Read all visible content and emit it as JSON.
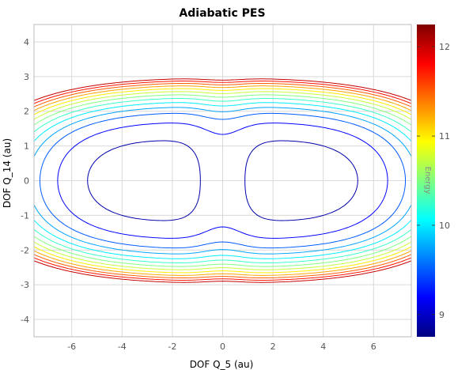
{
  "chart_data": {
    "type": "contour",
    "title": "Adiabatic PES",
    "xlabel": "DOF Q_5 (au)",
    "ylabel": "DOF Q_14 (au)",
    "xlim": [
      -7.5,
      7.5
    ],
    "ylim": [
      -4.5,
      4.5
    ],
    "x_ticks": [
      -6,
      -4,
      -2,
      0,
      2,
      4,
      6
    ],
    "y_ticks": [
      -4,
      -3,
      -2,
      -1,
      0,
      1,
      2,
      3,
      4
    ],
    "grid": true,
    "colorbar": {
      "label": "Energy",
      "range": [
        8.75,
        12.25
      ],
      "ticks": [
        9,
        10,
        11,
        12
      ],
      "colormap": "jet"
    },
    "series": [
      {
        "level": 8.9
      },
      {
        "level": 9.2
      },
      {
        "level": 9.5
      },
      {
        "level": 9.75
      },
      {
        "level": 10.0
      },
      {
        "level": 10.25
      },
      {
        "level": 10.5
      },
      {
        "level": 10.75
      },
      {
        "level": 11.0
      },
      {
        "level": 11.25
      },
      {
        "level": 11.5
      },
      {
        "level": 11.75
      },
      {
        "level": 12.0
      }
    ]
  }
}
